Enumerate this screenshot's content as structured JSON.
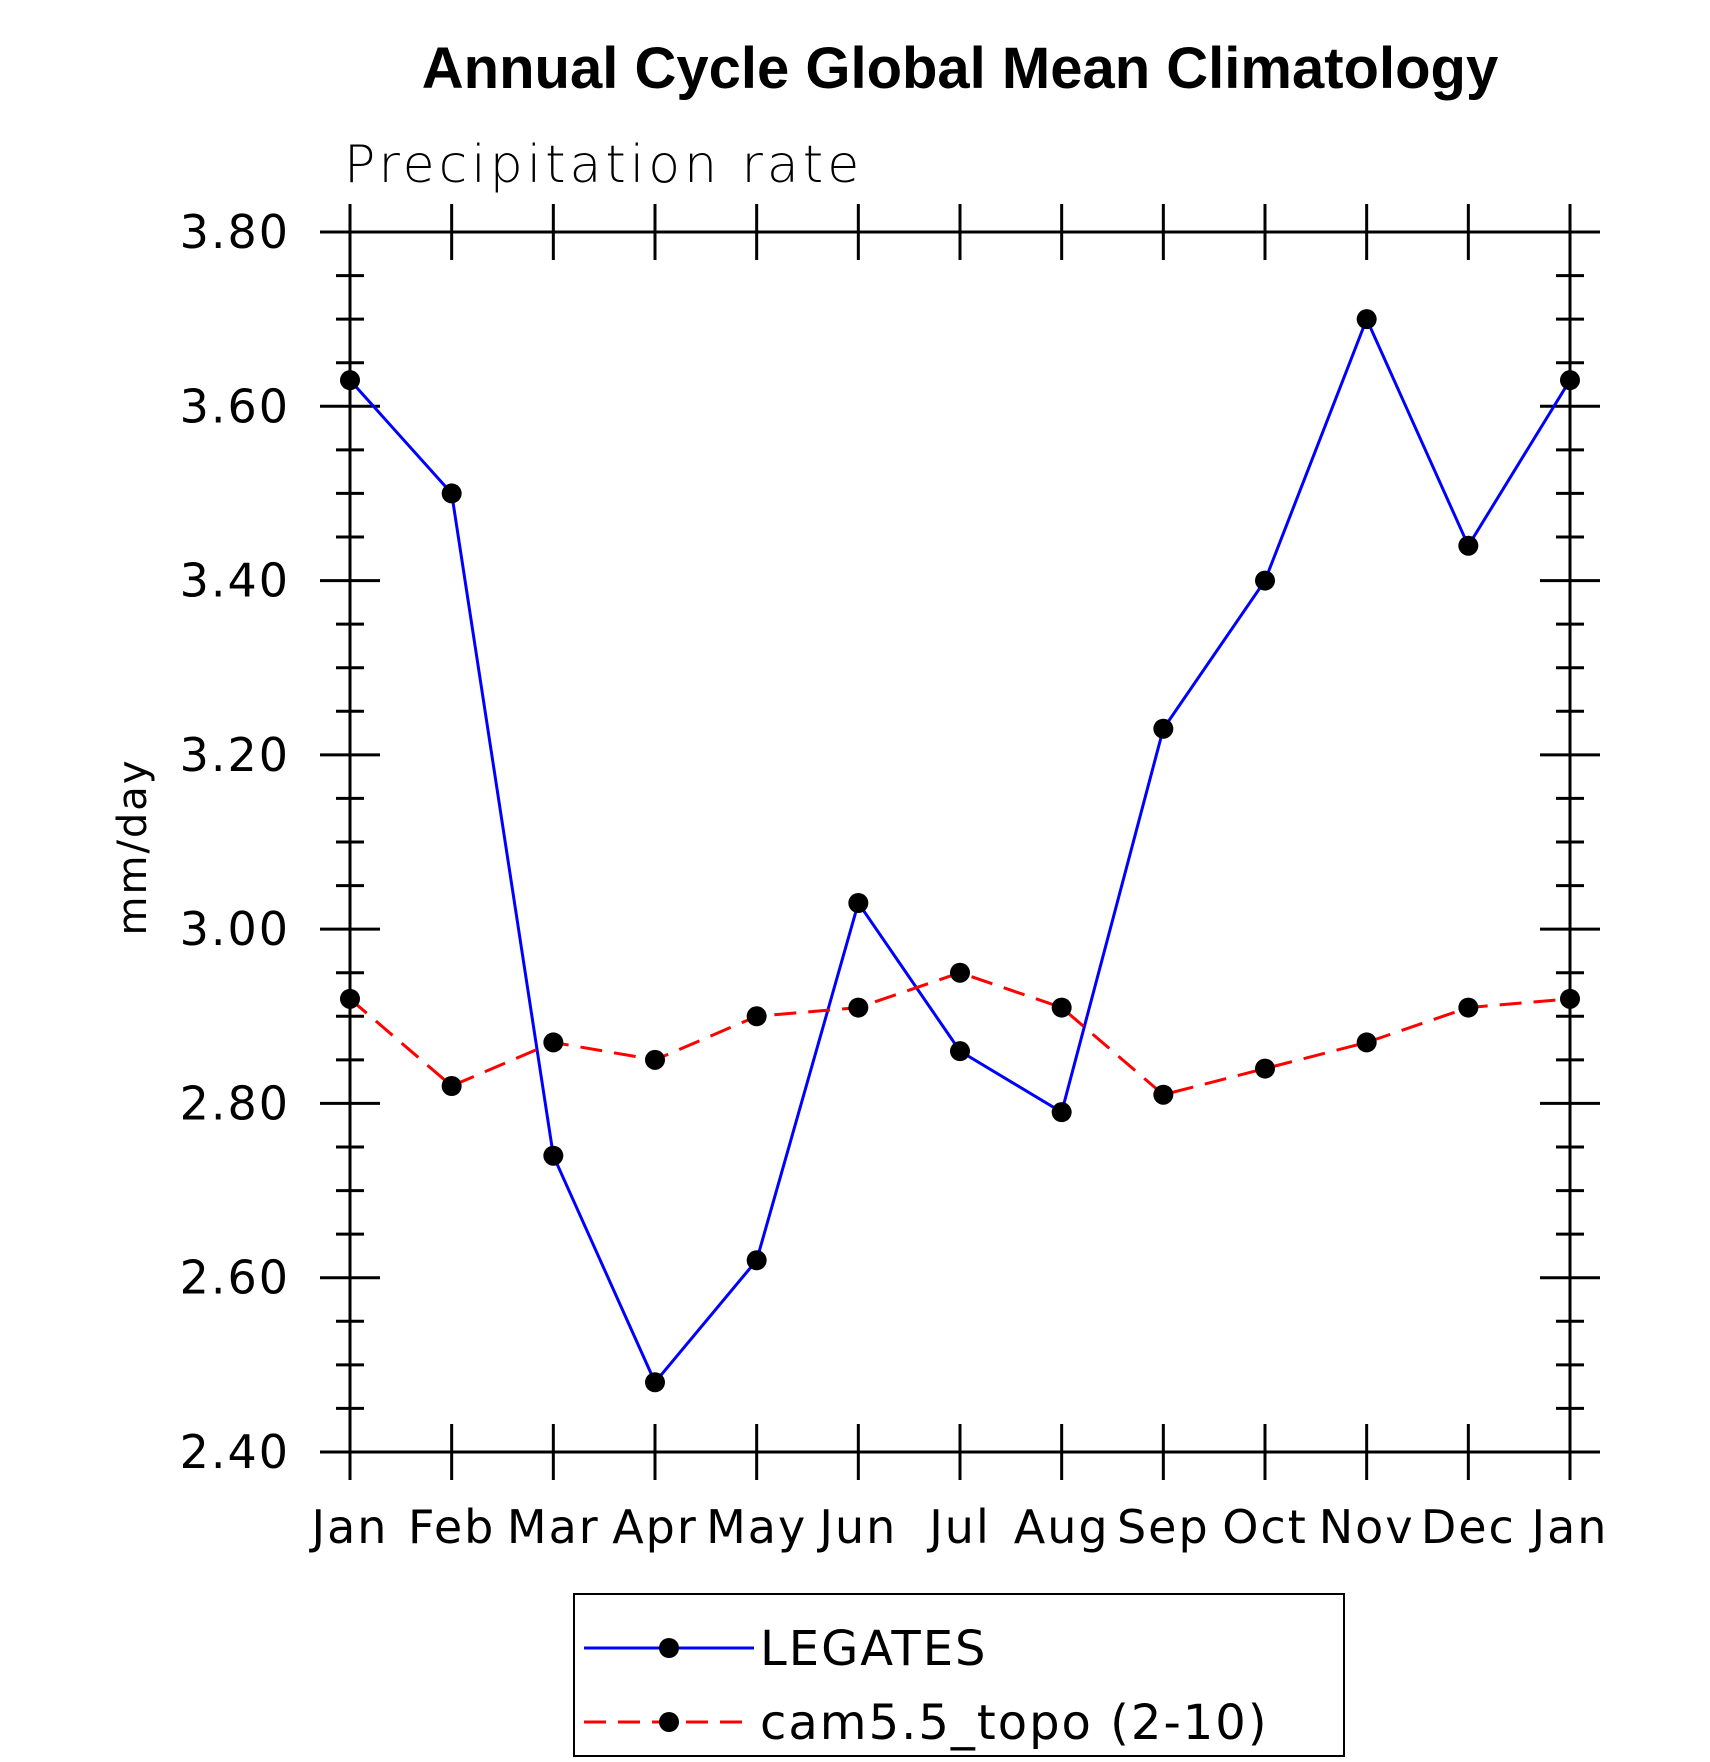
{
  "chart_data": {
    "type": "line",
    "title": "Annual Cycle Global Mean Climatology",
    "subtitle": "Precipitation rate",
    "xlabel": "",
    "ylabel": "mm/day",
    "categories": [
      "Jan",
      "Feb",
      "Mar",
      "Apr",
      "May",
      "Jun",
      "Jul",
      "Aug",
      "Sep",
      "Oct",
      "Nov",
      "Dec",
      "Jan"
    ],
    "ylim": [
      2.4,
      3.8
    ],
    "yticks": [
      "2.40",
      "2.60",
      "2.80",
      "3.00",
      "3.20",
      "3.40",
      "3.60",
      "3.80"
    ],
    "grid": false,
    "legend_position": "bottom-center",
    "series": [
      {
        "name": "LEGATES",
        "color": "#0000ff",
        "dash": "solid",
        "marker": "filled-circle",
        "values": [
          3.63,
          3.5,
          2.74,
          2.48,
          2.62,
          3.03,
          2.86,
          2.79,
          3.23,
          3.4,
          3.7,
          3.44,
          3.63
        ]
      },
      {
        "name": "cam5.5_topo (2-10)",
        "color": "#ff0000",
        "dash": "dashed",
        "marker": "filled-circle",
        "values": [
          2.92,
          2.82,
          2.87,
          2.85,
          2.9,
          2.91,
          2.95,
          2.91,
          2.81,
          2.84,
          2.87,
          2.91,
          2.92
        ]
      }
    ]
  }
}
